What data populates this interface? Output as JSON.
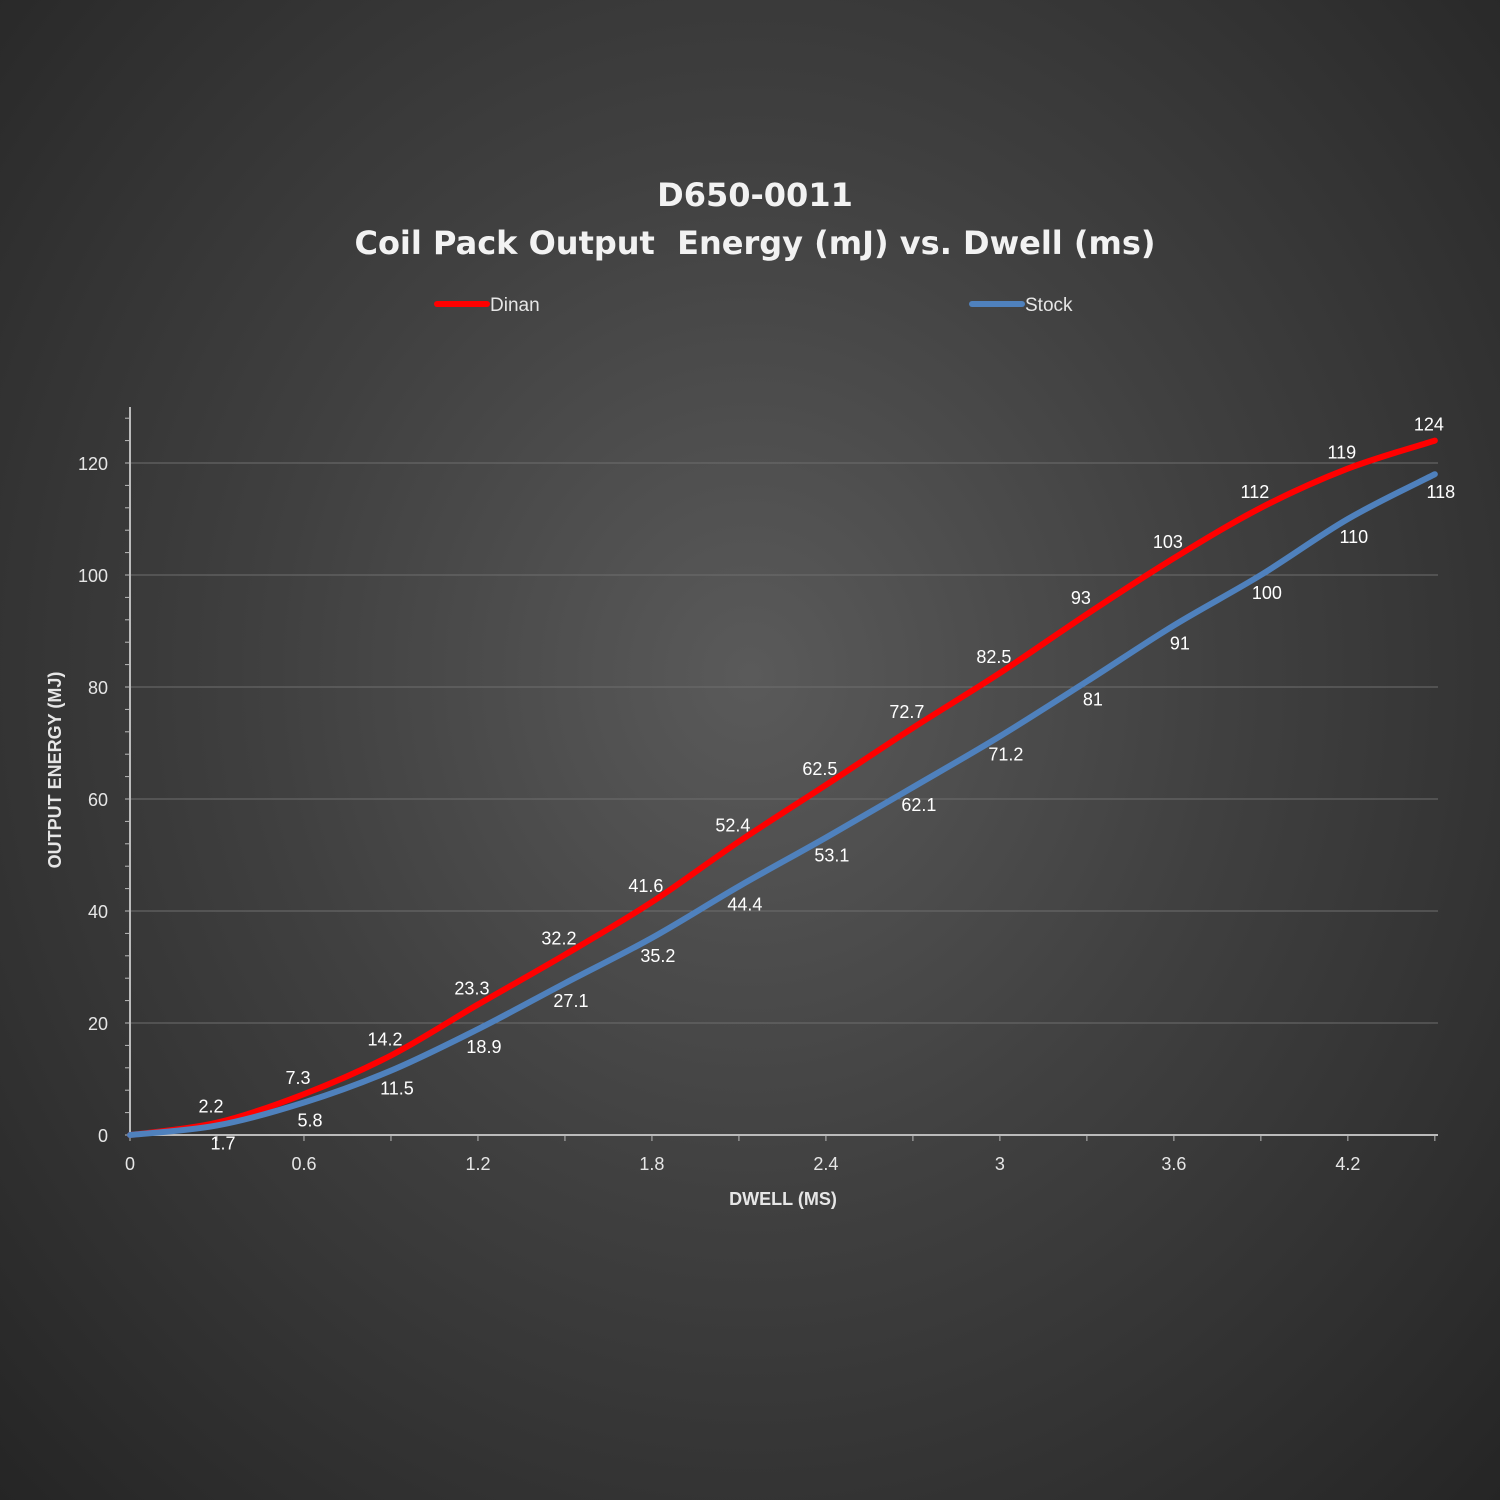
{
  "chart_data": {
    "type": "line",
    "title": "D650-0011",
    "subtitle": "Coil Pack Output  Energy (mJ) vs. Dwell (ms)",
    "xlabel": "DWELL (MS)",
    "ylabel": "OUTPUT ENERGY (MJ)",
    "xlim": [
      0,
      4.5
    ],
    "ylim": [
      0,
      130
    ],
    "xticks": [
      "0",
      "0.6",
      "1.2",
      "1.8",
      "2.4",
      "3",
      "3.6",
      "4.2"
    ],
    "yticks": [
      "0",
      "20",
      "40",
      "60",
      "80",
      "100",
      "120"
    ],
    "grid": true,
    "legend_position": "top",
    "x": [
      0,
      0.3,
      0.6,
      0.9,
      1.2,
      1.5,
      1.8,
      2.1,
      2.4,
      2.7,
      3.0,
      3.3,
      3.6,
      3.9,
      4.2,
      4.5
    ],
    "series": [
      {
        "name": "Dinan",
        "color": "#ff0000",
        "values": [
          0,
          2.2,
          7.3,
          14.2,
          23.3,
          32.2,
          41.6,
          52.4,
          62.5,
          72.7,
          82.5,
          93,
          103,
          112,
          119,
          124
        ],
        "labels": [
          "",
          "2.2",
          "7.3",
          "14.2",
          "23.3",
          "32.2",
          "41.6",
          "52.4",
          "62.5",
          "72.7",
          "82.5",
          "93",
          "103",
          "112",
          "119",
          "124"
        ]
      },
      {
        "name": "Stock",
        "color": "#4f81bd",
        "values": [
          0,
          1.7,
          5.8,
          11.5,
          18.9,
          27.1,
          35.2,
          44.4,
          53.1,
          62.1,
          71.2,
          81,
          91,
          100,
          110,
          118
        ],
        "labels": [
          "",
          "1.7",
          "5.8",
          "11.5",
          "18.9",
          "27.1",
          "35.2",
          "44.4",
          "53.1",
          "62.1",
          "71.2",
          "81",
          "91",
          "100",
          "110",
          "118"
        ]
      }
    ]
  }
}
